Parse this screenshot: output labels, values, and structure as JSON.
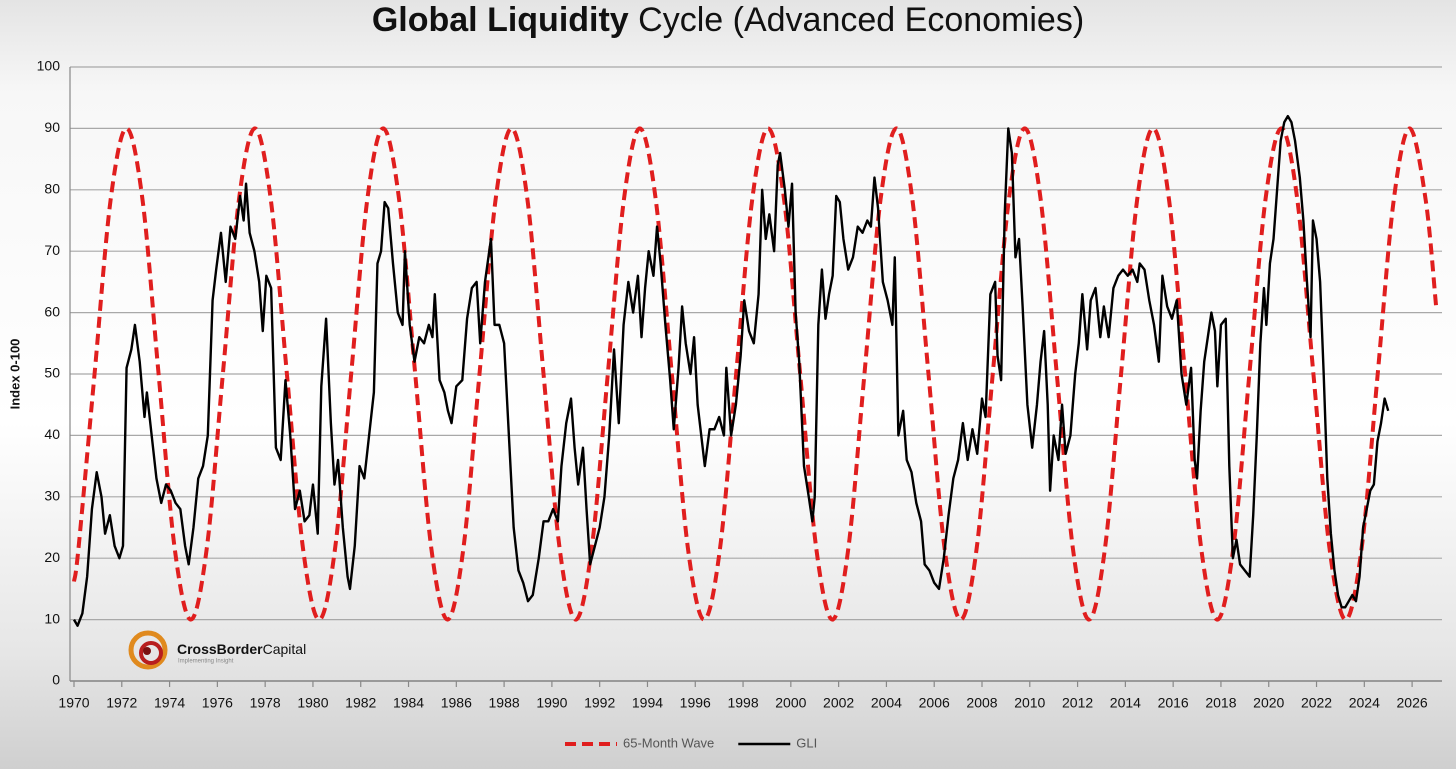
{
  "chart_data": {
    "type": "line",
    "title_bold": "Global Liquidity",
    "title_rest": " Cycle (Advanced Economies)",
    "ylabel": "Index 0-100",
    "logo_bold": "CrossBorder",
    "logo_rest": "Capital",
    "logo_tagline": "Implementing Insight",
    "xlim": [
      1970,
      2027
    ],
    "xticks": [
      1970,
      1972,
      1974,
      1976,
      1978,
      1980,
      1982,
      1984,
      1986,
      1988,
      1990,
      1992,
      1994,
      1996,
      1998,
      2000,
      2002,
      2004,
      2006,
      2008,
      2010,
      2012,
      2014,
      2016,
      2018,
      2020,
      2022,
      2024,
      2026
    ],
    "ylim": [
      0,
      100
    ],
    "yticks": [
      0,
      10,
      20,
      30,
      40,
      50,
      60,
      70,
      80,
      90,
      100
    ],
    "grid": true,
    "legend": "bottom",
    "series": [
      {
        "name": "65-Month Wave",
        "color": "#e01e1e",
        "style": "dashed",
        "smooth": true,
        "x": [
          1970,
          1970.19,
          1970.86,
          1971.53,
          1972.2,
          1972.87,
          1973.54,
          1974.21,
          1974.89,
          1975.56,
          1976.23,
          1976.9,
          1977.57,
          1978.24,
          1978.91,
          1979.58,
          1980.26,
          1980.93,
          1981.6,
          1982.27,
          1982.94,
          1983.61,
          1984.28,
          1984.95,
          1985.63,
          1986.3,
          1986.97,
          1987.64,
          1988.31,
          1988.98,
          1989.65,
          1990.32,
          1991.0,
          1991.67,
          1992.34,
          1993.01,
          1993.68,
          1994.35,
          1995.02,
          1995.69,
          1996.37,
          1997.04,
          1997.71,
          1998.38,
          1999.05,
          1999.72,
          2000.39,
          2001.06,
          2001.74,
          2002.41,
          2003.08,
          2003.75,
          2004.42,
          2005.09,
          2005.76,
          2006.43,
          2007.11,
          2007.78,
          2008.45,
          2009.12,
          2009.79,
          2010.46,
          2011.13,
          2011.8,
          2012.48,
          2013.15,
          2013.82,
          2014.49,
          2015.16,
          2015.83,
          2016.5,
          2017.17,
          2017.85,
          2018.52,
          2019.19,
          2019.86,
          2020.53,
          2021.2,
          2021.87,
          2022.54,
          2023.22,
          2023.89,
          2024.56,
          2025.23,
          2025.9,
          2026.57,
          2027
        ],
        "values": [
          16.2,
          21.7,
          50,
          78.3,
          90,
          78.3,
          50,
          21.7,
          10,
          21.7,
          50,
          78.3,
          90,
          78.3,
          50,
          21.7,
          10,
          21.7,
          50,
          78.3,
          90,
          78.3,
          50,
          21.7,
          10,
          21.7,
          50,
          78.3,
          90,
          78.3,
          50,
          21.7,
          10,
          21.7,
          50,
          78.3,
          90,
          78.3,
          50,
          21.7,
          10,
          21.7,
          50,
          78.3,
          90,
          78.3,
          50,
          21.7,
          10,
          21.7,
          50,
          78.3,
          90,
          78.3,
          50,
          21.7,
          10,
          21.7,
          50,
          78.3,
          90,
          78.3,
          50,
          21.7,
          10,
          21.7,
          50,
          78.3,
          90,
          78.3,
          50,
          21.7,
          10,
          21.7,
          50,
          78.3,
          90,
          78.3,
          50,
          21.7,
          10,
          21.7,
          50,
          78.3,
          90,
          78.3,
          61.2
        ]
      },
      {
        "name": "GLI",
        "color": "#000000",
        "style": "solid",
        "smooth": false,
        "x": [
          1970.0,
          1970.15,
          1970.35,
          1970.55,
          1970.75,
          1970.95,
          1971.15,
          1971.3,
          1971.5,
          1971.7,
          1971.9,
          1972.05,
          1972.2,
          1972.4,
          1972.55,
          1972.75,
          1972.95,
          1973.05,
          1973.25,
          1973.45,
          1973.65,
          1973.85,
          1974.05,
          1974.25,
          1974.45,
          1974.65,
          1974.8,
          1975.0,
          1975.2,
          1975.4,
          1975.6,
          1975.8,
          1975.95,
          1976.15,
          1976.35,
          1976.55,
          1976.75,
          1976.95,
          1977.1,
          1977.2,
          1977.35,
          1977.55,
          1977.75,
          1977.9,
          1978.05,
          1978.25,
          1978.45,
          1978.65,
          1978.85,
          1979.05,
          1979.25,
          1979.45,
          1979.65,
          1979.85,
          1980.0,
          1980.2,
          1980.35,
          1980.55,
          1980.75,
          1980.9,
          1981.05,
          1981.25,
          1981.45,
          1981.55,
          1981.75,
          1981.95,
          1982.15,
          1982.35,
          1982.55,
          1982.7,
          1982.85,
          1983.0,
          1983.15,
          1983.35,
          1983.55,
          1983.75,
          1983.85,
          1984.05,
          1984.25,
          1984.45,
          1984.65,
          1984.85,
          1985.0,
          1985.1,
          1985.3,
          1985.5,
          1985.65,
          1985.8,
          1986.0,
          1986.25,
          1986.45,
          1986.65,
          1986.85,
          1987.0,
          1987.2,
          1987.45,
          1987.6,
          1987.8,
          1988.0,
          1988.2,
          1988.4,
          1988.6,
          1988.8,
          1989.0,
          1989.2,
          1989.45,
          1989.65,
          1989.85,
          1990.05,
          1990.25,
          1990.4,
          1990.6,
          1990.8,
          1990.95,
          1991.1,
          1991.3,
          1991.45,
          1991.6,
          1991.8,
          1992.0,
          1992.2,
          1992.4,
          1992.6,
          1992.8,
          1993.0,
          1993.2,
          1993.4,
          1993.6,
          1993.75,
          1993.9,
          1994.05,
          1994.25,
          1994.4,
          1994.55,
          1994.75,
          1994.95,
          1995.1,
          1995.3,
          1995.45,
          1995.6,
          1995.8,
          1995.95,
          1996.1,
          1996.25,
          1996.4,
          1996.6,
          1996.8,
          1997.0,
          1997.2,
          1997.3,
          1997.5,
          1997.7,
          1997.9,
          1998.05,
          1998.25,
          1998.45,
          1998.65,
          1998.8,
          1998.95,
          1999.1,
          1999.3,
          1999.45,
          1999.55,
          1999.75,
          1999.9,
          2000.05,
          2000.2,
          2000.35,
          2000.55,
          2000.75,
          2000.9,
          2001.0,
          2001.15,
          2001.3,
          2001.45,
          2001.6,
          2001.75,
          2001.9,
          2002.05,
          2002.2,
          2002.4,
          2002.6,
          2002.8,
          2003.0,
          2003.2,
          2003.35,
          2003.5,
          2003.65,
          2003.85,
          2004.05,
          2004.25,
          2004.35,
          2004.5,
          2004.7,
          2004.85,
          2005.05,
          2005.25,
          2005.45,
          2005.6,
          2005.8,
          2006.0,
          2006.2,
          2006.4,
          2006.6,
          2006.8,
          2007.0,
          2007.2,
          2007.4,
          2007.6,
          2007.8,
          2008.0,
          2008.15,
          2008.35,
          2008.55,
          2008.65,
          2008.8,
          2008.95,
          2009.1,
          2009.25,
          2009.4,
          2009.55,
          2009.7,
          2009.9,
          2010.1,
          2010.3,
          2010.45,
          2010.6,
          2010.75,
          2010.85,
          2011.0,
          2011.2,
          2011.35,
          2011.5,
          2011.7,
          2011.9,
          2012.05,
          2012.2,
          2012.4,
          2012.55,
          2012.75,
          2012.95,
          2013.1,
          2013.3,
          2013.5,
          2013.7,
          2013.9,
          2014.1,
          2014.3,
          2014.5,
          2014.6,
          2014.8,
          2015.0,
          2015.2,
          2015.4,
          2015.55,
          2015.75,
          2015.95,
          2016.15,
          2016.35,
          2016.55,
          2016.75,
          2016.9,
          2017.0,
          2017.15,
          2017.3,
          2017.45,
          2017.6,
          2017.75,
          2017.85,
          2018.0,
          2018.2,
          2018.35,
          2018.5,
          2018.65,
          2018.8,
          2019.0,
          2019.2,
          2019.35,
          2019.5,
          2019.65,
          2019.8,
          2019.9,
          2020.05,
          2020.2,
          2020.35,
          2020.5,
          2020.65,
          2020.8,
          2020.95,
          2021.1,
          2021.3,
          2021.45,
          2021.6,
          2021.75,
          2021.85,
          2022.0,
          2022.15,
          2022.3,
          2022.45,
          2022.6,
          2022.75,
          2022.9,
          2023.05,
          2023.2,
          2023.35,
          2023.5,
          2023.65,
          2023.8,
          2023.95,
          2024.1,
          2024.25,
          2024.4,
          2024.55,
          2024.7,
          2024.85,
          2025.0
        ],
        "values": [
          10,
          9,
          11,
          17,
          28,
          34,
          30,
          24,
          27,
          22,
          20,
          22,
          51,
          54,
          58,
          52,
          43,
          47,
          40,
          33,
          29,
          32,
          31,
          29,
          28,
          22,
          19,
          25,
          33,
          35,
          40,
          62,
          67,
          73,
          65,
          74,
          72,
          79,
          75,
          81,
          73,
          70,
          65,
          57,
          66,
          64,
          38,
          36,
          49,
          40,
          28,
          31,
          26,
          27,
          32,
          24,
          48,
          59,
          42,
          32,
          36,
          25,
          17,
          15,
          22,
          35,
          33,
          40,
          47,
          68,
          70,
          78,
          77,
          68,
          60,
          58,
          70,
          58,
          52,
          56,
          55,
          58,
          56,
          63,
          49,
          47,
          44,
          42,
          48,
          49,
          59,
          64,
          65,
          55,
          65,
          72,
          58,
          58,
          55,
          40,
          25,
          18,
          16,
          13,
          14,
          20,
          26,
          26,
          28,
          26,
          35,
          42,
          46,
          38,
          32,
          38,
          28,
          19,
          22,
          25,
          30,
          40,
          54,
          42,
          58,
          65,
          60,
          66,
          56,
          64,
          70,
          66,
          74,
          68,
          58,
          49,
          41,
          51,
          61,
          55,
          50,
          56,
          45,
          40,
          35,
          41,
          41,
          43,
          40,
          51,
          40,
          45,
          53,
          62,
          57,
          55,
          63,
          80,
          72,
          76,
          70,
          84,
          86,
          80,
          74,
          81,
          60,
          52,
          35,
          30,
          26,
          30,
          58,
          67,
          59,
          63,
          66,
          79,
          78,
          72,
          67,
          69,
          74,
          73,
          75,
          74,
          82,
          77,
          65,
          62,
          58,
          69,
          40,
          44,
          36,
          34,
          29,
          26,
          19,
          18,
          16,
          15,
          20,
          27,
          33,
          36,
          42,
          36,
          41,
          37,
          46,
          43,
          63,
          65,
          53,
          49,
          76,
          90,
          86,
          69,
          72,
          61,
          45,
          38,
          45,
          52,
          57,
          45,
          31,
          40,
          36,
          45,
          37,
          40,
          50,
          55,
          63,
          54,
          62,
          64,
          56,
          61,
          56,
          64,
          66,
          67,
          66,
          67,
          65,
          68,
          67,
          62,
          58,
          52,
          66,
          61,
          59,
          62,
          50,
          45,
          51,
          36,
          33,
          44,
          52,
          56,
          60,
          57,
          48,
          58,
          59,
          35,
          20,
          23,
          19,
          18,
          17,
          27,
          40,
          55,
          64,
          58,
          68,
          72,
          80,
          88,
          91,
          92,
          91,
          88,
          82,
          75,
          65,
          56,
          75,
          72,
          65,
          50,
          33,
          24,
          18,
          14,
          12,
          12,
          13,
          14,
          13,
          17,
          25,
          28,
          31,
          32,
          39,
          42,
          46,
          44
        ]
      }
    ]
  }
}
